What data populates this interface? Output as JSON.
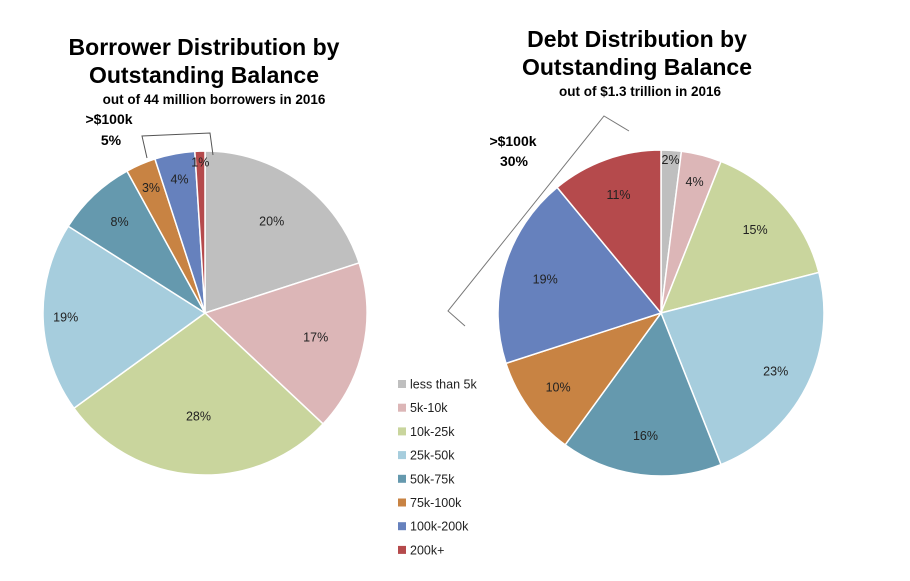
{
  "chart_data": [
    {
      "type": "pie",
      "title": "Borrower Distribution by Outstanding Balance",
      "title_lines": [
        "Borrower Distribution by",
        "Outstanding Balance"
      ],
      "subtitle": "out of  44 million borrowers in 2016",
      "categories": [
        "less than 5k",
        "5k-10k",
        "10k-25k",
        "25k-50k",
        "50k-75k",
        "75k-100k",
        "100k-200k",
        "200k+"
      ],
      "values": [
        20,
        17,
        28,
        19,
        8,
        3,
        4,
        1
      ],
      "labels": [
        "20%",
        "17%",
        "28%",
        "19%",
        "8%",
        "3%",
        "4%",
        "1%"
      ],
      "annotation": {
        "lines": [
          ">$100k",
          "5%"
        ]
      }
    },
    {
      "type": "pie",
      "title": "Debt Distribution by Outstanding Balance",
      "title_lines": [
        "Debt Distribution by",
        "Outstanding Balance"
      ],
      "subtitle": "out of $1.3 trillion in 2016",
      "categories": [
        "less than 5k",
        "5k-10k",
        "10k-25k",
        "25k-50k",
        "50k-75k",
        "75k-100k",
        "100k-200k",
        "200k+"
      ],
      "values": [
        2,
        4,
        15,
        23,
        16,
        10,
        19,
        11
      ],
      "labels": [
        "2%",
        "4%",
        "15%",
        "23%",
        "16%",
        "10%",
        "19%",
        "11%"
      ],
      "annotation": {
        "lines": [
          ">$100k",
          "30%"
        ]
      }
    }
  ],
  "legend": {
    "entries": [
      "less than 5k",
      "5k-10k",
      "10k-25k",
      "25k-50k",
      "50k-75k",
      "75k-100k",
      "100k-200k",
      "200k+"
    ],
    "colors": [
      "#bfbfbf",
      "#dcb6b7",
      "#c9d59d",
      "#a6cddd",
      "#6599ae",
      "#c88343",
      "#6681bd",
      "#b54a4c"
    ]
  }
}
